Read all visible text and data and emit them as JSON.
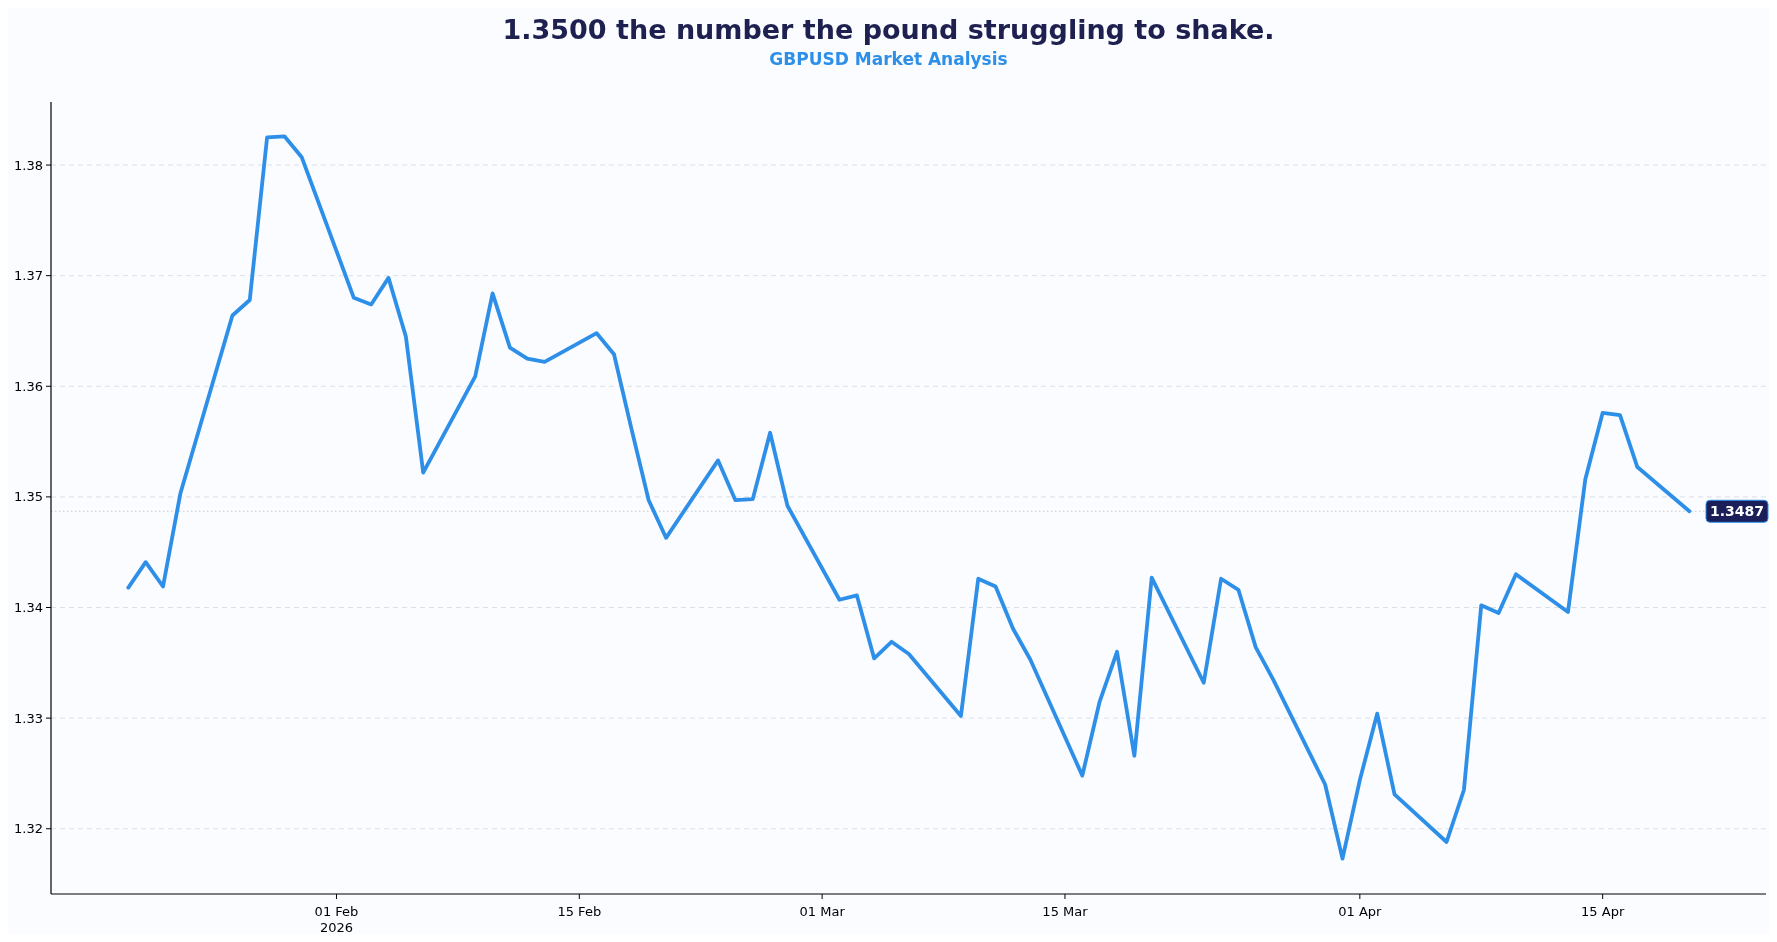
{
  "chart_data": {
    "type": "line",
    "title": "1.3500 the number the pound struggling to shake.",
    "subtitle": "GBPUSD Market Analysis",
    "x": [
      "2026-01-20",
      "2026-01-21",
      "2026-01-22",
      "2026-01-23",
      "2026-01-26",
      "2026-01-27",
      "2026-01-28",
      "2026-01-29",
      "2026-01-30",
      "2026-02-02",
      "2026-02-03",
      "2026-02-04",
      "2026-02-05",
      "2026-02-06",
      "2026-02-09",
      "2026-02-10",
      "2026-02-11",
      "2026-02-12",
      "2026-02-13",
      "2026-02-16",
      "2026-02-17",
      "2026-02-18",
      "2026-02-19",
      "2026-02-20",
      "2026-02-23",
      "2026-02-24",
      "2026-02-25",
      "2026-02-26",
      "2026-02-27",
      "2026-03-02",
      "2026-03-03",
      "2026-03-04",
      "2026-03-05",
      "2026-03-06",
      "2026-03-09",
      "2026-03-10",
      "2026-03-11",
      "2026-03-12",
      "2026-03-13",
      "2026-03-16",
      "2026-03-17",
      "2026-03-18",
      "2026-03-19",
      "2026-03-20",
      "2026-03-23",
      "2026-03-24",
      "2026-03-25",
      "2026-03-26",
      "2026-03-27",
      "2026-03-30",
      "2026-03-31",
      "2026-04-01",
      "2026-04-02",
      "2026-04-03",
      "2026-04-06",
      "2026-04-07",
      "2026-04-08",
      "2026-04-09",
      "2026-04-10",
      "2026-04-13",
      "2026-04-14",
      "2026-04-15",
      "2026-04-16",
      "2026-04-17",
      "2026-04-20"
    ],
    "series": [
      {
        "color": "#2e8fe8",
        "values": [
          1.3418,
          1.3441,
          1.3419,
          1.3503,
          1.3664,
          1.3678,
          1.3825,
          1.3826,
          1.3807,
          1.368,
          1.3674,
          1.3698,
          1.3645,
          1.3522,
          1.3609,
          1.3684,
          1.3635,
          1.3625,
          1.3622,
          1.3648,
          1.3629,
          1.3562,
          1.3497,
          1.3463,
          1.3533,
          1.3497,
          1.3498,
          1.3558,
          1.3492,
          1.3407,
          1.3411,
          1.3354,
          1.3369,
          1.3358,
          1.3302,
          1.3426,
          1.3419,
          1.3381,
          1.3353,
          1.3248,
          1.3315,
          1.336,
          1.3266,
          1.3427,
          1.3332,
          1.3426,
          1.3416,
          1.3364,
          1.3335,
          1.324,
          1.3173,
          1.3244,
          1.3304,
          1.3231,
          1.3188,
          1.3235,
          1.3402,
          1.3395,
          1.343,
          1.3396,
          1.3516,
          1.3576,
          1.3574,
          1.3527,
          1.3487
        ]
      }
    ],
    "xlim": [
      "2026-01-15T13:00",
      "2026-04-24T10:00"
    ],
    "xticks": [
      {
        "value": "2026-02-01",
        "label": "01 Feb\n2026"
      },
      {
        "value": "2026-02-15",
        "label": "15 Feb"
      },
      {
        "value": "2026-03-01",
        "label": "01 Mar"
      },
      {
        "value": "2026-03-15",
        "label": "15 Mar"
      },
      {
        "value": "2026-04-01",
        "label": "01 Apr"
      },
      {
        "value": "2026-04-15",
        "label": "15 Apr"
      }
    ],
    "ylim": [
      1.3141,
      1.3857
    ],
    "yticks": [
      1.32,
      1.33,
      1.34,
      1.35,
      1.36,
      1.37,
      1.38
    ],
    "grid": "y",
    "marker": "none",
    "line_style": "solid",
    "ref_lines": [
      {
        "axis": "y",
        "value": 1.3487,
        "label": "1.3487",
        "color": "#c8c8cc",
        "line_style": "dotted"
      }
    ]
  }
}
